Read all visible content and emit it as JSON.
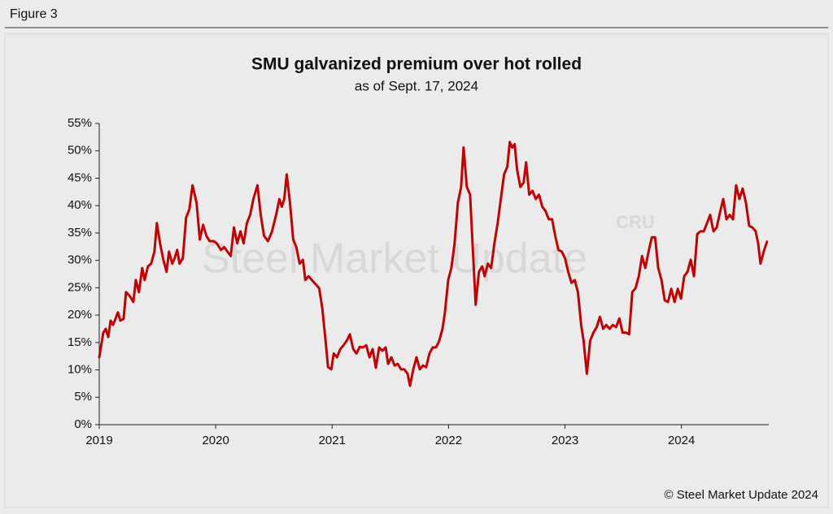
{
  "figure_label": "Figure 3",
  "chart_data": {
    "type": "line",
    "title": "SMU galvanized premium over hot rolled",
    "subtitle": "as of Sept. 17, 2024",
    "watermark": "Steel Market Update",
    "watermark_logo": "CRU",
    "source": "© Steel Market Update 2024",
    "color": "#c00000",
    "x": [
      2019.0,
      2019.035,
      2019.056,
      2019.077,
      2019.098,
      2019.118,
      2019.139,
      2019.16,
      2019.181,
      2019.209,
      2019.23,
      2019.265,
      2019.293,
      2019.314,
      2019.341,
      2019.369,
      2019.39,
      2019.418,
      2019.446,
      2019.474,
      2019.495,
      2019.523,
      2019.551,
      2019.578,
      2019.599,
      2019.627,
      2019.648,
      2019.669,
      2019.69,
      2019.718,
      2019.746,
      2019.774,
      2019.801,
      2019.836,
      2019.864,
      2019.892,
      2019.92,
      2019.948,
      2019.983,
      2020.01,
      2020.045,
      2020.073,
      2020.101,
      2020.129,
      2020.157,
      2020.185,
      2020.213,
      2020.24,
      2020.268,
      2020.296,
      2020.324,
      2020.359,
      2020.387,
      2020.415,
      2020.449,
      2020.484,
      2020.519,
      2020.547,
      2020.568,
      2020.589,
      2020.61,
      2020.638,
      2020.666,
      2020.693,
      2020.721,
      2020.749,
      2020.77,
      2020.798,
      2020.826,
      2020.861,
      2020.889,
      2020.916,
      2020.944,
      2020.965,
      2020.993,
      2021.014,
      2021.042,
      2021.07,
      2021.098,
      2021.125,
      2021.153,
      2021.181,
      2021.209,
      2021.237,
      2021.265,
      2021.293,
      2021.321,
      2021.348,
      2021.376,
      2021.404,
      2021.432,
      2021.46,
      2021.481,
      2021.509,
      2021.537,
      2021.564,
      2021.592,
      2021.62,
      2021.648,
      2021.669,
      2021.697,
      2021.725,
      2021.753,
      2021.78,
      2021.808,
      2021.836,
      2021.864,
      2021.892,
      2021.92,
      2021.948,
      2021.969,
      2021.997,
      2022.024,
      2022.052,
      2022.08,
      2022.108,
      2022.129,
      2022.157,
      2022.185,
      2022.206,
      2022.233,
      2022.261,
      2022.289,
      2022.31,
      2022.338,
      2022.366,
      2022.394,
      2022.422,
      2022.449,
      2022.477,
      2022.505,
      2022.526,
      2022.547,
      2022.568,
      2022.589,
      2022.617,
      2022.645,
      2022.666,
      2022.693,
      2022.721,
      2022.749,
      2022.777,
      2022.805,
      2022.833,
      2022.861,
      2022.889,
      2022.916,
      2022.944,
      2022.972,
      2023.0,
      2023.028,
      2023.056,
      2023.084,
      2023.111,
      2023.139,
      2023.16,
      2023.188,
      2023.216,
      2023.244,
      2023.272,
      2023.3,
      2023.328,
      2023.355,
      2023.383,
      2023.411,
      2023.439,
      2023.467,
      2023.495,
      2023.523,
      2023.551,
      2023.578,
      2023.606,
      2023.634,
      2023.662,
      2023.69,
      2023.718,
      2023.746,
      2023.774,
      2023.801,
      2023.829,
      2023.857,
      2023.885,
      2023.913,
      2023.941,
      2023.969,
      2023.997,
      2024.024,
      2024.052,
      2024.08,
      2024.108,
      2024.136,
      2024.164,
      2024.192,
      2024.22,
      2024.247,
      2024.275,
      2024.303,
      2024.331,
      2024.359,
      2024.387,
      2024.415,
      2024.443,
      2024.47,
      2024.498,
      2024.526,
      2024.554,
      2024.582,
      2024.61,
      2024.638,
      2024.659,
      2024.679,
      2024.707,
      2024.735
    ],
    "values": [
      12.3,
      16.8,
      17.5,
      16,
      19,
      18.2,
      19.3,
      20.5,
      19,
      19.3,
      24.2,
      23.4,
      22.4,
      26.4,
      24.2,
      28.6,
      26.4,
      28.9,
      29.4,
      31.6,
      36.8,
      33,
      30.1,
      27.9,
      31.6,
      29.4,
      30.4,
      31.9,
      29.4,
      30.4,
      37.8,
      39.3,
      43.7,
      40.5,
      33.8,
      36.5,
      34.5,
      33.5,
      33.5,
      33.1,
      31.9,
      32.4,
      31.6,
      30.8,
      36,
      33.1,
      35.3,
      33.1,
      36.8,
      38.3,
      41.2,
      43.7,
      38.3,
      34.5,
      33.5,
      35.3,
      38.3,
      41.2,
      39.8,
      41.2,
      45.7,
      40.5,
      33.8,
      32.4,
      29.4,
      30.1,
      26.4,
      27.1,
      26.4,
      25.6,
      24.9,
      21.2,
      15.3,
      10.5,
      10.1,
      13,
      12.3,
      13.8,
      14.5,
      15.3,
      16.5,
      13.8,
      13,
      14.2,
      14.1,
      14.5,
      12.3,
      13.8,
      10.4,
      14.1,
      13.5,
      14.1,
      11.1,
      12.3,
      10.8,
      11.1,
      10.1,
      10.1,
      9.3,
      7.1,
      10.1,
      12.3,
      10.1,
      10.8,
      10.5,
      13,
      14.1,
      14.1,
      15.3,
      17.5,
      20.5,
      26.4,
      28.6,
      33.1,
      40.5,
      43.4,
      50.6,
      43.4,
      42,
      33.1,
      21.9,
      27.9,
      28.9,
      27.1,
      29.4,
      28.6,
      33.1,
      36.8,
      41.2,
      45.7,
      47.1,
      51.6,
      50.6,
      51.2,
      46.5,
      43.4,
      44.2,
      47.9,
      42,
      42.7,
      41.2,
      42,
      39.8,
      39,
      37.5,
      37.5,
      34.5,
      31.9,
      31.6,
      30.4,
      27.9,
      25.9,
      26.4,
      24.2,
      18.2,
      15.3,
      9.3,
      15.3,
      16.8,
      17.8,
      19.7,
      17.5,
      18.2,
      17.5,
      18.2,
      17.8,
      19.4,
      16.8,
      16.8,
      16.5,
      24.2,
      24.9,
      27.1,
      30.8,
      28.6,
      31.6,
      34.2,
      34.2,
      28.6,
      26.4,
      22.7,
      22.4,
      24.8,
      22.4,
      24.8,
      23,
      27.1,
      27.9,
      30.1,
      27.1,
      34.8,
      35.3,
      35.3,
      36.8,
      38.3,
      35.3,
      36,
      38.7,
      41.2,
      37.5,
      38.3,
      37.5,
      43.7,
      41.2,
      43.1,
      40.5,
      36.3,
      36,
      35.3,
      33.1,
      29.4,
      31.6,
      33.4
    ],
    "xlim": [
      2019,
      2024.75
    ],
    "xticks": [
      2019,
      2020,
      2021,
      2022,
      2023,
      2024
    ],
    "ylim": [
      0,
      55
    ],
    "yticks": [
      {
        "value": 0,
        "label": "0%"
      },
      {
        "value": 5,
        "label": "5%"
      },
      {
        "value": 10,
        "label": "10%"
      },
      {
        "value": 15,
        "label": "15%"
      },
      {
        "value": 20,
        "label": "20%"
      },
      {
        "value": 25,
        "label": "25%"
      },
      {
        "value": 30,
        "label": "30%"
      },
      {
        "value": 35,
        "label": "35%"
      },
      {
        "value": 40,
        "label": "40%"
      },
      {
        "value": 45,
        "label": "45%"
      },
      {
        "value": 50,
        "label": "50%"
      },
      {
        "value": 55,
        "label": "55%"
      }
    ],
    "grid": false
  }
}
